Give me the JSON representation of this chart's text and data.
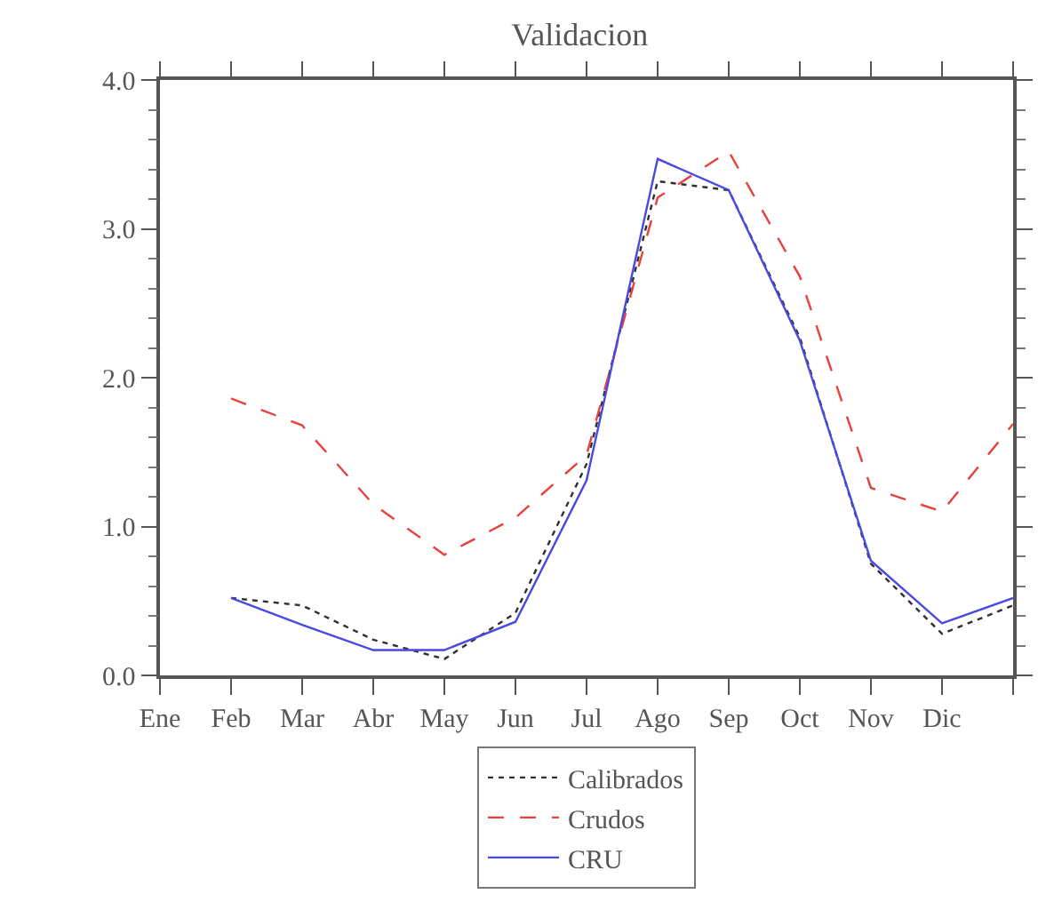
{
  "chart_data": {
    "type": "line",
    "title": "Validacion",
    "categories": [
      "Ene",
      "Feb",
      "Mar",
      "Abr",
      "May",
      "Jun",
      "Jul",
      "Ago",
      "Sep",
      "Oct",
      "Nov",
      "Dic",
      null
    ],
    "series": [
      {
        "name": "Calibrados",
        "color": "#303030",
        "line_style": "dotted",
        "values": [
          null,
          0.52,
          0.47,
          0.24,
          0.11,
          0.42,
          1.42,
          3.32,
          3.26,
          2.27,
          0.75,
          0.28,
          0.47
        ]
      },
      {
        "name": "Crudos",
        "color": "#e8413c",
        "line_style": "dashed",
        "values": [
          null,
          1.86,
          1.68,
          1.15,
          0.81,
          1.06,
          1.48,
          3.21,
          3.52,
          2.68,
          1.26,
          1.1,
          1.69
        ]
      },
      {
        "name": "CRU",
        "color": "#4a4ae0",
        "line_style": "solid",
        "values": [
          null,
          0.52,
          0.34,
          0.17,
          0.17,
          0.36,
          1.31,
          3.47,
          3.26,
          2.25,
          0.77,
          0.35,
          0.52
        ]
      }
    ],
    "ylim": [
      0,
      4
    ],
    "yticks": [
      {
        "value": 0,
        "label": "0.0"
      },
      {
        "value": 1,
        "label": "1.0"
      },
      {
        "value": 2,
        "label": "2.0"
      },
      {
        "value": 3,
        "label": "3.0"
      },
      {
        "value": 4,
        "label": "4.0"
      }
    ],
    "legend": "bottom",
    "marker": "none"
  }
}
